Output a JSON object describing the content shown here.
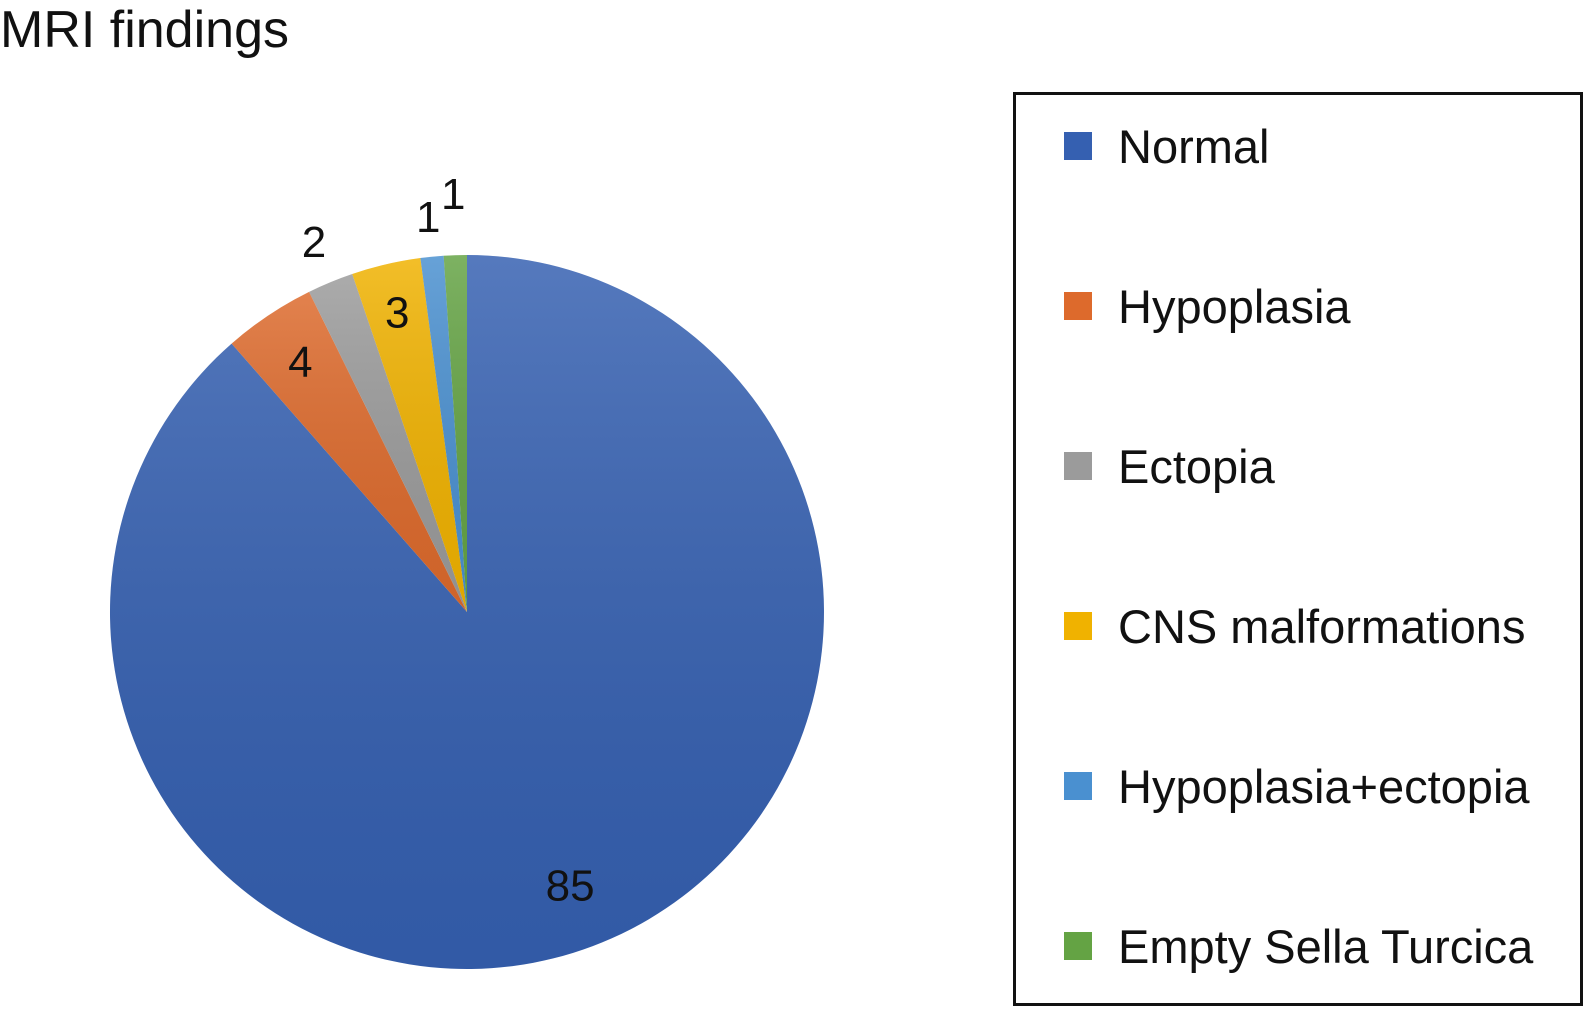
{
  "chart_data": {
    "type": "pie",
    "title": "MRI findings",
    "categories": [
      "Normal",
      "Hypoplasia",
      "Ectopia",
      "CNS malformations",
      "Hypoplasia+ectopia",
      "Empty Sella Turcica"
    ],
    "values": [
      85,
      4,
      2,
      3,
      1,
      1
    ],
    "colors": [
      "#3560b1",
      "#dd6a2c",
      "#9b9b9b",
      "#f0b200",
      "#4a90d0",
      "#64a344"
    ],
    "data_labels": [
      "85",
      "4",
      "2",
      "3",
      "1",
      "1"
    ],
    "start_angle": "12 o'clock",
    "direction": "clockwise",
    "legend_placement": "right"
  },
  "legend": {
    "items": [
      {
        "label": "Normal",
        "color": "#3560b1"
      },
      {
        "label": "Hypoplasia",
        "color": "#dd6a2c"
      },
      {
        "label": "Ectopia",
        "color": "#9b9b9b"
      },
      {
        "label": "CNS malformations",
        "color": "#f0b200"
      },
      {
        "label": "Hypoplasia+ectopia",
        "color": "#4a90d0"
      },
      {
        "label": "Empty Sella Turcica",
        "color": "#64a344"
      }
    ]
  }
}
